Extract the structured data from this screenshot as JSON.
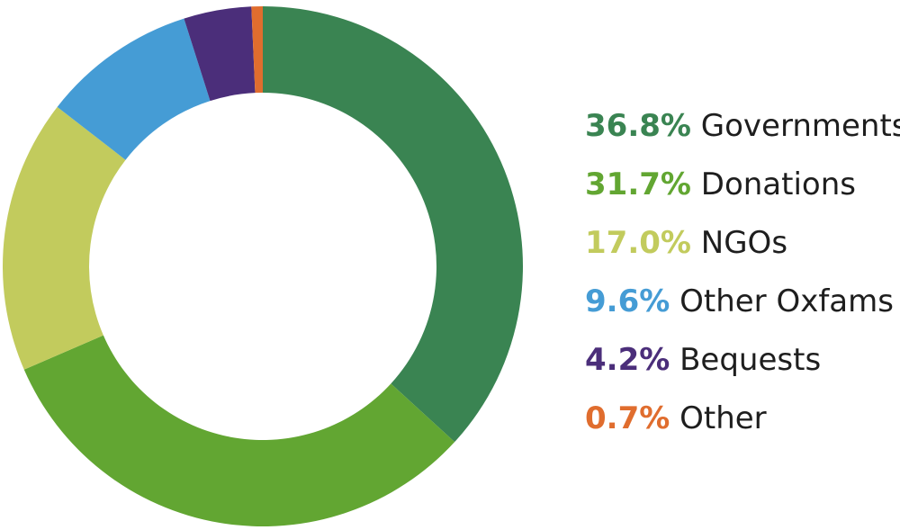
{
  "chart_data": {
    "type": "pie",
    "variant": "donut",
    "title": "",
    "legend_position": "right",
    "slices": [
      {
        "label": "Governments",
        "value": 36.8,
        "value_label": "36.8%",
        "color": "#3a8452"
      },
      {
        "label": "Donations",
        "value": 31.7,
        "value_label": "31.7%",
        "color": "#62a632"
      },
      {
        "label": "NGOs",
        "value": 17.0,
        "value_label": "17.0%",
        "color": "#c2cb5d"
      },
      {
        "label": "Other Oxfams",
        "value": 9.6,
        "value_label": "9.6%",
        "color": "#459cd5"
      },
      {
        "label": "Bequests",
        "value": 4.2,
        "value_label": "4.2%",
        "color": "#4b2e7a"
      },
      {
        "label": "Other",
        "value": 0.7,
        "value_label": "0.7%",
        "color": "#e06d2e"
      }
    ]
  }
}
